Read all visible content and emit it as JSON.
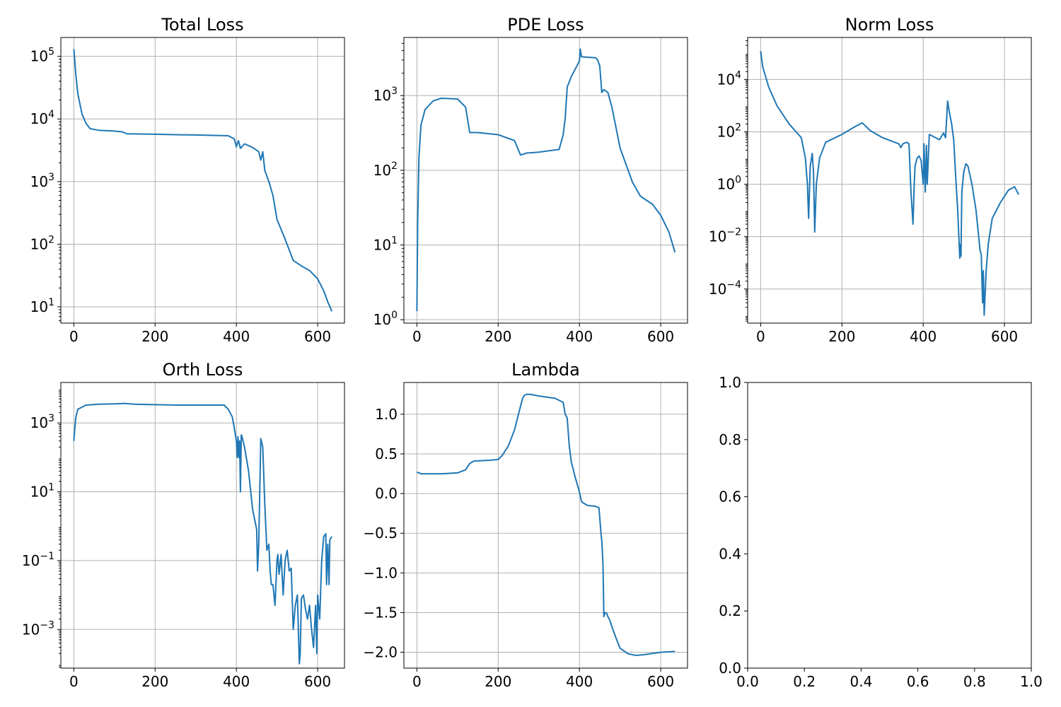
{
  "chart_data": [
    {
      "type": "line",
      "title": "Total Loss",
      "yscale": "log",
      "xlim": [
        -32,
        666
      ],
      "ylim": [
        5.5,
        200000
      ],
      "xticks": [
        0,
        200,
        400,
        600
      ],
      "yticks": [
        {
          "base": "10",
          "exp": "1",
          "value": 10
        },
        {
          "base": "10",
          "exp": "2",
          "value": 100
        },
        {
          "base": "10",
          "exp": "3",
          "value": 1000
        },
        {
          "base": "10",
          "exp": "4",
          "value": 10000
        },
        {
          "base": "10",
          "exp": "5",
          "value": 100000
        }
      ],
      "grid": true,
      "series": [
        {
          "color": "#1f77b4",
          "x": [
            0,
            5,
            10,
            20,
            30,
            40,
            60,
            100,
            120,
            130,
            200,
            260,
            300,
            380,
            395,
            400,
            405,
            410,
            420,
            440,
            455,
            460,
            465,
            470,
            480,
            490,
            500,
            520,
            540,
            560,
            580,
            600,
            615,
            625,
            635
          ],
          "y": [
            130000,
            50000,
            25000,
            12000,
            8500,
            7000,
            6600,
            6400,
            6200,
            5800,
            5700,
            5600,
            5550,
            5400,
            4800,
            3600,
            4500,
            3400,
            4000,
            3500,
            3000,
            2200,
            3000,
            1500,
            1000,
            600,
            250,
            120,
            55,
            45,
            38,
            28,
            18,
            12,
            8.5
          ]
        }
      ]
    },
    {
      "type": "line",
      "title": "PDE Loss",
      "yscale": "log",
      "xlim": [
        -32,
        666
      ],
      "ylim": [
        0.9,
        6000
      ],
      "xticks": [
        0,
        200,
        400,
        600
      ],
      "yticks": [
        {
          "base": "10",
          "exp": "0",
          "value": 1
        },
        {
          "base": "10",
          "exp": "1",
          "value": 10
        },
        {
          "base": "10",
          "exp": "2",
          "value": 100
        },
        {
          "base": "10",
          "exp": "3",
          "value": 1000
        }
      ],
      "grid": true,
      "series": [
        {
          "color": "#1f77b4",
          "x": [
            0,
            2,
            5,
            10,
            20,
            40,
            60,
            100,
            120,
            130,
            150,
            200,
            240,
            255,
            270,
            300,
            350,
            360,
            365,
            370,
            380,
            400,
            402,
            405,
            440,
            445,
            450,
            455,
            460,
            470,
            480,
            500,
            530,
            550,
            580,
            600,
            620,
            635
          ],
          "y": [
            1.3,
            20,
            150,
            400,
            650,
            850,
            920,
            900,
            700,
            320,
            320,
            300,
            250,
            160,
            170,
            175,
            190,
            300,
            500,
            1300,
            1800,
            2900,
            4200,
            3300,
            3200,
            3000,
            2500,
            1100,
            1200,
            1100,
            700,
            200,
            70,
            45,
            35,
            25,
            15,
            8
          ]
        }
      ]
    },
    {
      "type": "line",
      "title": "Norm Loss",
      "yscale": "log",
      "xlim": [
        -32,
        666
      ],
      "ylim": 5e-06,
      "ylim_max": 400000,
      "xticks": [
        0,
        200,
        400,
        600
      ],
      "yticks": [
        {
          "base": "10",
          "exp": "−4",
          "value": 0.0001
        },
        {
          "base": "10",
          "exp": "−2",
          "value": 0.01
        },
        {
          "base": "10",
          "exp": "0",
          "value": 1
        },
        {
          "base": "10",
          "exp": "2",
          "value": 100
        },
        {
          "base": "10",
          "exp": "4",
          "value": 10000
        }
      ],
      "grid": true,
      "series": [
        {
          "color": "#1f77b4",
          "x": [
            0,
            5,
            20,
            40,
            70,
            100,
            110,
            115,
            118,
            122,
            127,
            130,
            133,
            137,
            145,
            160,
            200,
            230,
            250,
            270,
            300,
            340,
            345,
            350,
            360,
            365,
            370,
            375,
            378,
            380,
            385,
            390,
            395,
            400,
            402,
            405,
            408,
            410,
            415,
            440,
            450,
            455,
            460,
            465,
            470,
            475,
            480,
            485,
            490,
            491,
            493,
            495,
            500,
            505,
            510,
            520,
            530,
            540,
            543,
            546,
            548,
            550,
            555,
            560,
            570,
            590,
            610,
            625,
            635
          ],
          "y": [
            120000,
            30000,
            5000,
            1000,
            200,
            60,
            10,
            1,
            0.05,
            5,
            15,
            3,
            0.015,
            1,
            10,
            40,
            80,
            150,
            220,
            110,
            60,
            35,
            25,
            35,
            40,
            35,
            0.5,
            0.03,
            1,
            5,
            10,
            12,
            8,
            1,
            35,
            0.5,
            30,
            1,
            80,
            50,
            90,
            60,
            1500,
            500,
            200,
            50,
            2,
            0.1,
            0.0015,
            0.005,
            0.0018,
            0.5,
            3,
            6,
            5,
            1,
            0.1,
            0.003,
            0.002,
            3e-05,
            0.0005,
            1e-05,
            0.0005,
            0.005,
            0.05,
            0.2,
            0.6,
            0.8,
            0.4
          ]
        }
      ]
    },
    {
      "type": "line",
      "title": "Orth Loss",
      "yscale": "log",
      "xlim": [
        -32,
        666
      ],
      "ylim": [
        7.5e-05,
        15000
      ],
      "xticks": [
        0,
        200,
        400,
        600
      ],
      "yticks": [
        {
          "base": "10",
          "exp": "−3",
          "value": 0.001
        },
        {
          "base": "10",
          "exp": "−1",
          "value": 0.1
        },
        {
          "base": "10",
          "exp": "1",
          "value": 10
        },
        {
          "base": "10",
          "exp": "3",
          "value": 1000
        }
      ],
      "grid": true,
      "series": [
        {
          "color": "#1f77b4",
          "x": [
            0,
            2,
            5,
            10,
            30,
            60,
            100,
            125,
            150,
            200,
            260,
            300,
            370,
            380,
            390,
            395,
            400,
            402,
            404,
            406,
            408,
            410,
            412,
            414,
            420,
            430,
            440,
            450,
            452,
            455,
            460,
            465,
            470,
            475,
            480,
            483,
            486,
            490,
            495,
            500,
            502,
            505,
            510,
            515,
            520,
            525,
            530,
            535,
            540,
            545,
            550,
            555,
            557,
            560,
            565,
            570,
            575,
            580,
            585,
            590,
            595,
            598,
            600,
            605,
            610,
            615,
            620,
            622,
            625,
            628,
            630,
            635
          ],
          "y": [
            300,
            600,
            1500,
            2500,
            3300,
            3500,
            3600,
            3700,
            3500,
            3400,
            3300,
            3300,
            3300,
            2500,
            1500,
            700,
            300,
            100,
            400,
            100,
            300,
            10,
            450,
            400,
            200,
            40,
            3,
            0.8,
            0.05,
            0.3,
            350,
            200,
            4,
            0.2,
            0.3,
            0.05,
            0.02,
            0.02,
            0.005,
            0.1,
            0.15,
            0.04,
            0.15,
            0.01,
            0.1,
            0.2,
            0.05,
            0.06,
            0.001,
            0.005,
            0.01,
            0.0001,
            0.0002,
            0.008,
            0.01,
            0.004,
            0.002,
            0.005,
            0.001,
            0.0003,
            0.005,
            0.0002,
            0.01,
            0.002,
            0.1,
            0.5,
            0.6,
            0.02,
            0.3,
            0.02,
            0.4,
            0.5
          ]
        }
      ]
    },
    {
      "type": "line",
      "title": "Lambda",
      "yscale": "linear",
      "xlim": [
        -32,
        666
      ],
      "ylim": [
        -2.2,
        1.4
      ],
      "xticks": [
        0,
        200,
        400,
        600
      ],
      "yticks": [
        {
          "label": "−2.0",
          "value": -2.0
        },
        {
          "label": "−1.5",
          "value": -1.5
        },
        {
          "label": "−1.0",
          "value": -1.0
        },
        {
          "label": "−0.5",
          "value": -0.5
        },
        {
          "label": "0.0",
          "value": 0.0
        },
        {
          "label": "0.5",
          "value": 0.5
        },
        {
          "label": "1.0",
          "value": 1.0
        }
      ],
      "grid": true,
      "series": [
        {
          "color": "#1f77b4",
          "x": [
            0,
            10,
            30,
            60,
            100,
            120,
            130,
            140,
            180,
            200,
            210,
            225,
            240,
            250,
            260,
            265,
            270,
            280,
            300,
            340,
            360,
            365,
            370,
            375,
            380,
            390,
            400,
            405,
            410,
            420,
            440,
            448,
            450,
            453,
            455,
            458,
            460,
            463,
            467,
            470,
            475,
            480,
            490,
            500,
            520,
            540,
            560,
            600,
            635
          ],
          "y": [
            0.27,
            0.25,
            0.25,
            0.25,
            0.26,
            0.3,
            0.38,
            0.41,
            0.42,
            0.43,
            0.48,
            0.6,
            0.8,
            1.0,
            1.2,
            1.24,
            1.25,
            1.25,
            1.23,
            1.2,
            1.15,
            1.0,
            0.95,
            0.6,
            0.4,
            0.2,
            0.02,
            -0.1,
            -0.12,
            -0.15,
            -0.16,
            -0.18,
            -0.3,
            -0.5,
            -0.6,
            -0.9,
            -1.55,
            -1.5,
            -1.51,
            -1.55,
            -1.6,
            -1.68,
            -1.82,
            -1.95,
            -2.02,
            -2.04,
            -2.03,
            -2.0,
            -1.99
          ]
        }
      ]
    },
    {
      "type": "line",
      "title": "",
      "yscale": "linear",
      "xlim": [
        0,
        1
      ],
      "ylim": [
        0,
        1
      ],
      "xticks": [
        {
          "label": "0.0",
          "value": 0.0
        },
        {
          "label": "0.2",
          "value": 0.2
        },
        {
          "label": "0.4",
          "value": 0.4
        },
        {
          "label": "0.6",
          "value": 0.6
        },
        {
          "label": "0.8",
          "value": 0.8
        },
        {
          "label": "1.0",
          "value": 1.0
        }
      ],
      "yticks": [
        {
          "label": "0.0",
          "value": 0.0
        },
        {
          "label": "0.2",
          "value": 0.2
        },
        {
          "label": "0.4",
          "value": 0.4
        },
        {
          "label": "0.6",
          "value": 0.6
        },
        {
          "label": "0.8",
          "value": 0.8
        },
        {
          "label": "1.0",
          "value": 1.0
        }
      ],
      "grid": false,
      "series": []
    }
  ]
}
